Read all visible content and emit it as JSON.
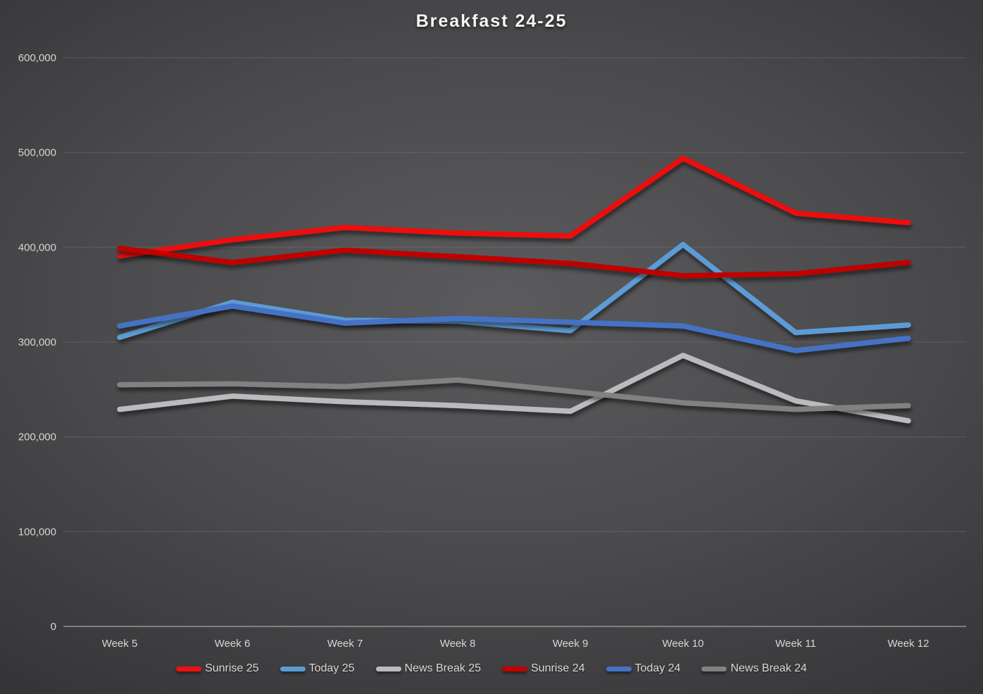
{
  "title": "Breakfast 24-25",
  "chart_data": {
    "type": "line",
    "title": "Breakfast 24-25",
    "categories": [
      "Week 5",
      "Week 6",
      "Week 7",
      "Week 8",
      "Week 9",
      "Week 10",
      "Week 11",
      "Week 12"
    ],
    "series": [
      {
        "name": "Sunrise 25",
        "color": "#ee0f0f",
        "values": [
          391000,
          408000,
          421000,
          415000,
          412000,
          494000,
          436000,
          426000
        ]
      },
      {
        "name": "Today 25",
        "color": "#5b9bd5",
        "values": [
          305000,
          342000,
          323000,
          322000,
          312000,
          403000,
          310000,
          318000
        ]
      },
      {
        "name": "News Break 25",
        "color": "#b9bcbe",
        "values": [
          229000,
          243000,
          237000,
          233000,
          227000,
          286000,
          238000,
          217000
        ]
      },
      {
        "name": "Sunrise 24",
        "color": "#c00000",
        "values": [
          399000,
          384000,
          397000,
          390000,
          383000,
          370000,
          372000,
          384000
        ]
      },
      {
        "name": "Today 24",
        "color": "#4472c4",
        "values": [
          317000,
          338000,
          320000,
          325000,
          321000,
          317000,
          291000,
          304000
        ]
      },
      {
        "name": "News Break 24",
        "color": "#818181",
        "values": [
          255000,
          256000,
          253000,
          260000,
          248000,
          236000,
          229000,
          233000
        ]
      }
    ],
    "ylim": [
      0,
      600000
    ],
    "ytick_step": 100000,
    "ytick_labels": [
      "600,000",
      "500,000",
      "400,000",
      "300,000",
      "200,000",
      "100,000",
      "0"
    ],
    "grid": "horizontal",
    "legend_position": "bottom"
  },
  "style": {
    "grid_color": "#7d7d7d",
    "axis_color": "#a0a0a0",
    "label_color": "#d6d6d6"
  }
}
